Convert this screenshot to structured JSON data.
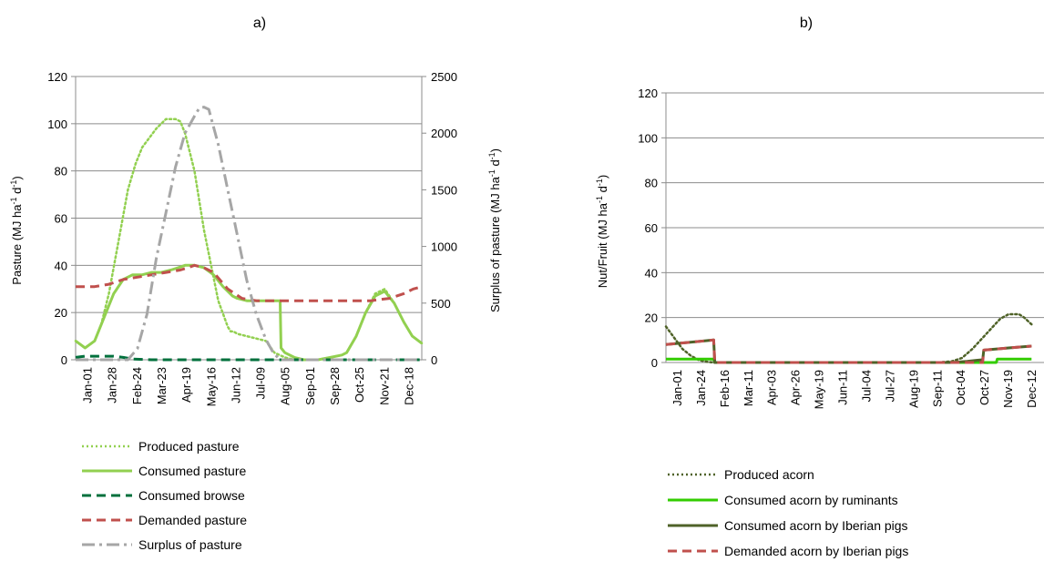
{
  "chart_data": [
    {
      "panel": "a)",
      "type": "line",
      "categories": [
        "Jan-01",
        "Jan-28",
        "Feb-24",
        "Mar-23",
        "Apr-19",
        "May-16",
        "Jun-12",
        "Jul-09",
        "Aug-05",
        "Sep-01",
        "Sep-28",
        "Oct-25",
        "Nov-21",
        "Dec-18"
      ],
      "ylabel_left": "Pasture (MJ ha",
      "ylabel_left_sup": "-1",
      "ylabel_left_mid": " d",
      "ylabel_left_sup2": "-1",
      "ylabel_left_end": ")",
      "ylabel_right": "Surplus of pasture (MJ ha",
      "ylabel_right_sup": "-1",
      "ylabel_right_mid": " d",
      "ylabel_right_sup2": "-1",
      "ylabel_right_end": ")",
      "ylim_left": [
        0,
        120
      ],
      "yticks_left": [
        "0",
        "20",
        "40",
        "60",
        "80",
        "100",
        "120"
      ],
      "ylim_right": [
        0,
        2500
      ],
      "yticks_right": [
        "0",
        "500",
        "1000",
        "1500",
        "2000",
        "2500"
      ],
      "grid": true,
      "legend_position": "bottom-left",
      "series": [
        {
          "name": "Produced pasture",
          "axis": "left",
          "color": "#92d050",
          "style": "dotted",
          "x": [
            0,
            10,
            20,
            27,
            35,
            45,
            55,
            63,
            70,
            85,
            95,
            105,
            110,
            115,
            125,
            135,
            150,
            160,
            163,
            166,
            170,
            180,
            190,
            200,
            209,
            220,
            230,
            240,
            255,
            268,
            280,
            285,
            295,
            305,
            315,
            325,
            335,
            345,
            354,
            364
          ],
          "y": [
            8,
            5,
            8,
            15,
            28,
            50,
            72,
            83,
            90,
            98,
            102,
            102,
            101,
            96,
            80,
            55,
            25,
            14,
            12,
            12,
            11,
            10,
            9,
            8,
            3,
            1,
            0,
            0,
            0,
            1,
            2,
            3,
            10,
            20,
            28,
            30,
            24,
            16,
            10,
            7
          ]
        },
        {
          "name": "Consumed pasture",
          "axis": "left",
          "color": "#92d050",
          "style": "solid",
          "x": [
            0,
            10,
            20,
            30,
            40,
            50,
            60,
            70,
            80,
            90,
            100,
            108,
            115,
            125,
            135,
            145,
            155,
            160,
            165,
            170,
            180,
            190,
            200,
            210,
            215,
            216,
            220,
            230,
            240,
            255,
            268,
            280,
            285,
            295,
            305,
            315,
            325,
            335,
            345,
            354,
            364
          ],
          "y": [
            8,
            5,
            8,
            18,
            28,
            34,
            36,
            36,
            37,
            37,
            38,
            39,
            40,
            40,
            39,
            36,
            31,
            29,
            27,
            26,
            25,
            25,
            25,
            25,
            25,
            5,
            3,
            1,
            0,
            0,
            1,
            2,
            3,
            10,
            20,
            27,
            29,
            24,
            16,
            10,
            7
          ]
        },
        {
          "name": "Consumed browse",
          "axis": "left",
          "color": "#00703c",
          "style": "dashed",
          "x": [
            0,
            10,
            20,
            30,
            40,
            50,
            60,
            80,
            120,
            200,
            250,
            300,
            364
          ],
          "y": [
            1,
            1.5,
            1.5,
            1.5,
            1.5,
            1,
            0.3,
            0,
            0,
            0,
            0,
            0,
            0
          ]
        },
        {
          "name": "Demanded pasture",
          "axis": "left",
          "color": "#c0504d",
          "style": "dashed",
          "x": [
            0,
            10,
            20,
            35,
            50,
            65,
            80,
            95,
            110,
            118,
            125,
            135,
            145,
            160,
            175,
            190,
            210,
            230,
            250,
            270,
            290,
            310,
            330,
            345,
            355,
            364
          ],
          "y": [
            31,
            31,
            31,
            32,
            34,
            35,
            36,
            37,
            38,
            39,
            40,
            39,
            37,
            30,
            26,
            25,
            25,
            25,
            25,
            25,
            25,
            25,
            26,
            28,
            30,
            31
          ]
        },
        {
          "name": "Surplus of pasture",
          "axis": "right",
          "color": "#a6a6a6",
          "style": "dashdot",
          "x": [
            0,
            20,
            40,
            55,
            65,
            75,
            85,
            95,
            105,
            115,
            125,
            130,
            135,
            140,
            150,
            160,
            170,
            180,
            190,
            200,
            208,
            215,
            250,
            300,
            364
          ],
          "y": [
            0,
            0,
            0,
            0,
            100,
            400,
            900,
            1300,
            1700,
            2000,
            2150,
            2220,
            2230,
            2210,
            1900,
            1500,
            1100,
            700,
            400,
            180,
            60,
            0,
            0,
            0,
            0
          ]
        }
      ]
    },
    {
      "panel": "b)",
      "type": "line",
      "categories": [
        "Jan-01",
        "Jan-24",
        "Feb-16",
        "Mar-11",
        "Apr-03",
        "Apr-26",
        "May-19",
        "Jun-11",
        "Jul-04",
        "Jul-27",
        "Aug-19",
        "Sep-11",
        "Oct-04",
        "Oct-27",
        "Nov-19",
        "Dec-12"
      ],
      "ylabel": "Nut/Fruit (MJ ha",
      "ylabel_sup": "-1",
      "ylabel_mid": " d",
      "ylabel_sup2": "-1",
      "ylabel_end": ")",
      "ylim": [
        0,
        120
      ],
      "yticks": [
        "0",
        "20",
        "40",
        "60",
        "80",
        "100",
        "120"
      ],
      "grid": true,
      "legend_position": "bottom",
      "series": [
        {
          "name": "Produced acorn",
          "color": "#4f6228",
          "style": "dotted",
          "x": [
            0,
            8,
            16,
            24,
            32,
            40,
            46,
            100,
            200,
            260,
            275,
            285,
            295,
            305,
            315,
            322,
            330,
            340,
            345,
            352
          ],
          "y": [
            16,
            11,
            6,
            3,
            1,
            0.3,
            0,
            0,
            0,
            0,
            0.5,
            2,
            6,
            11,
            16,
            19.5,
            21.5,
            21.5,
            20,
            17
          ]
        },
        {
          "name": "Consumed acorn by ruminants",
          "color": "#33cc00",
          "style": "solid",
          "x": [
            0,
            10,
            20,
            35,
            46,
            47,
            100,
            200,
            300,
            318,
            319,
            330,
            352
          ],
          "y": [
            1.5,
            1.5,
            1.5,
            1.5,
            1.5,
            0,
            0,
            0,
            0,
            0,
            1.5,
            1.5,
            1.5
          ]
        },
        {
          "name": "Consumed acorn by Iberian pigs",
          "color": "#4f6228",
          "style": "solid",
          "x": [
            0,
            46,
            47,
            100,
            200,
            275,
            290,
            300,
            305,
            306,
            330,
            352
          ],
          "y": [
            8,
            10,
            0,
            0,
            0,
            0,
            0.5,
            1,
            1.2,
            5.5,
            6.5,
            7.3
          ]
        },
        {
          "name": "Demanded acorn by Iberian pigs",
          "color": "#c0504d",
          "style": "dashed",
          "x": [
            0,
            46,
            47,
            100,
            200,
            290,
            305,
            306,
            330,
            352
          ],
          "y": [
            8,
            10,
            0,
            0,
            0,
            0,
            0,
            5.5,
            6.5,
            7.3
          ]
        }
      ]
    }
  ]
}
